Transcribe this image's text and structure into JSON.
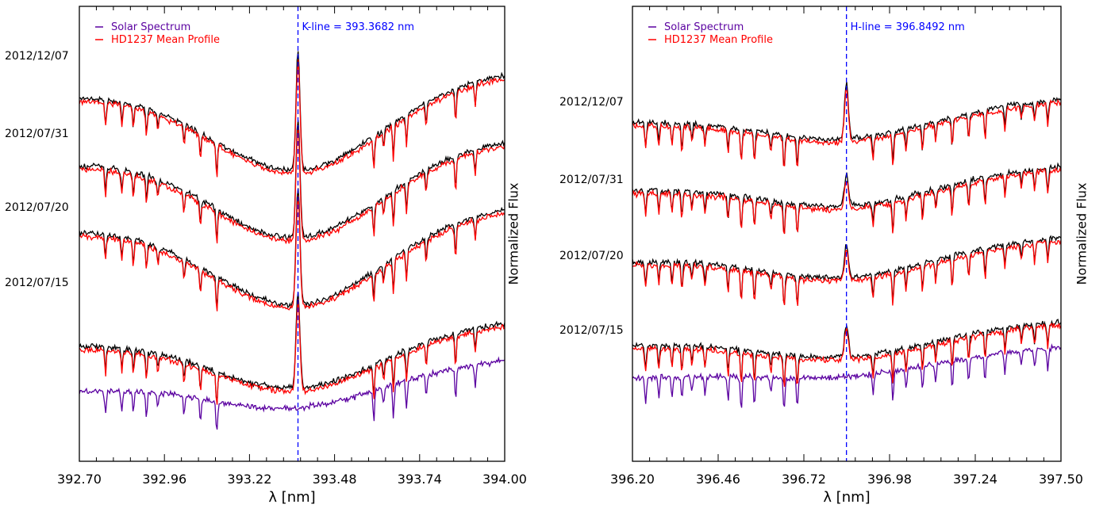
{
  "chart_data": [
    {
      "type": "line",
      "xlabel": "λ [nm]",
      "ylabel": "Normalized Flux",
      "xlim": [
        392.7,
        394.0
      ],
      "xticks": [
        "392.70",
        "392.96",
        "393.22",
        "393.48",
        "393.74",
        "394.00"
      ],
      "annotation": {
        "text": "K-line = 393.3682 nm",
        "x": 393.3682,
        "color": "#0000ff"
      },
      "epochs": [
        "2012/12/07",
        "2012/07/31",
        "2012/07/20",
        "2012/07/15"
      ],
      "legend": [
        {
          "name": "Solar Spectrum",
          "color": "#5a00a0"
        },
        {
          "name": "HD1237 Mean Profile",
          "color": "#ff0000"
        }
      ],
      "series_colors": {
        "observed": "#000000",
        "mean_profile": "#ff0000",
        "solar": "#5a00a0"
      },
      "lines": [
        392.78,
        392.83,
        392.865,
        392.905,
        392.94,
        393.02,
        393.07,
        393.12,
        393.6,
        393.63,
        393.66,
        393.7,
        393.76,
        393.85,
        393.91
      ],
      "grid": false,
      "legend_position": "top-left"
    },
    {
      "type": "line",
      "xlabel": "λ [nm]",
      "ylabel": "Normalized Flux",
      "xlim": [
        396.2,
        397.5
      ],
      "xticks": [
        "396.20",
        "396.46",
        "396.72",
        "396.98",
        "397.24",
        "397.50"
      ],
      "annotation": {
        "text": "H-line = 396.8492 nm",
        "x": 396.8492,
        "color": "#0000ff"
      },
      "epochs": [
        "2012/12/07",
        "2012/07/31",
        "2012/07/20",
        "2012/07/15"
      ],
      "legend": [
        {
          "name": "Solar Spectrum",
          "color": "#5a00a0"
        },
        {
          "name": "HD1237 Mean Profile",
          "color": "#ff0000"
        }
      ],
      "series_colors": {
        "observed": "#000000",
        "mean_profile": "#ff0000",
        "solar": "#5a00a0"
      },
      "lines": [
        396.24,
        396.28,
        396.32,
        396.35,
        396.38,
        396.42,
        396.49,
        396.53,
        396.57,
        396.62,
        396.66,
        396.7,
        396.93,
        396.99,
        397.03,
        397.08,
        397.12,
        397.17,
        397.22,
        397.27,
        397.33,
        397.38,
        397.42,
        397.46
      ],
      "grid": false,
      "legend_position": "top-left"
    }
  ]
}
